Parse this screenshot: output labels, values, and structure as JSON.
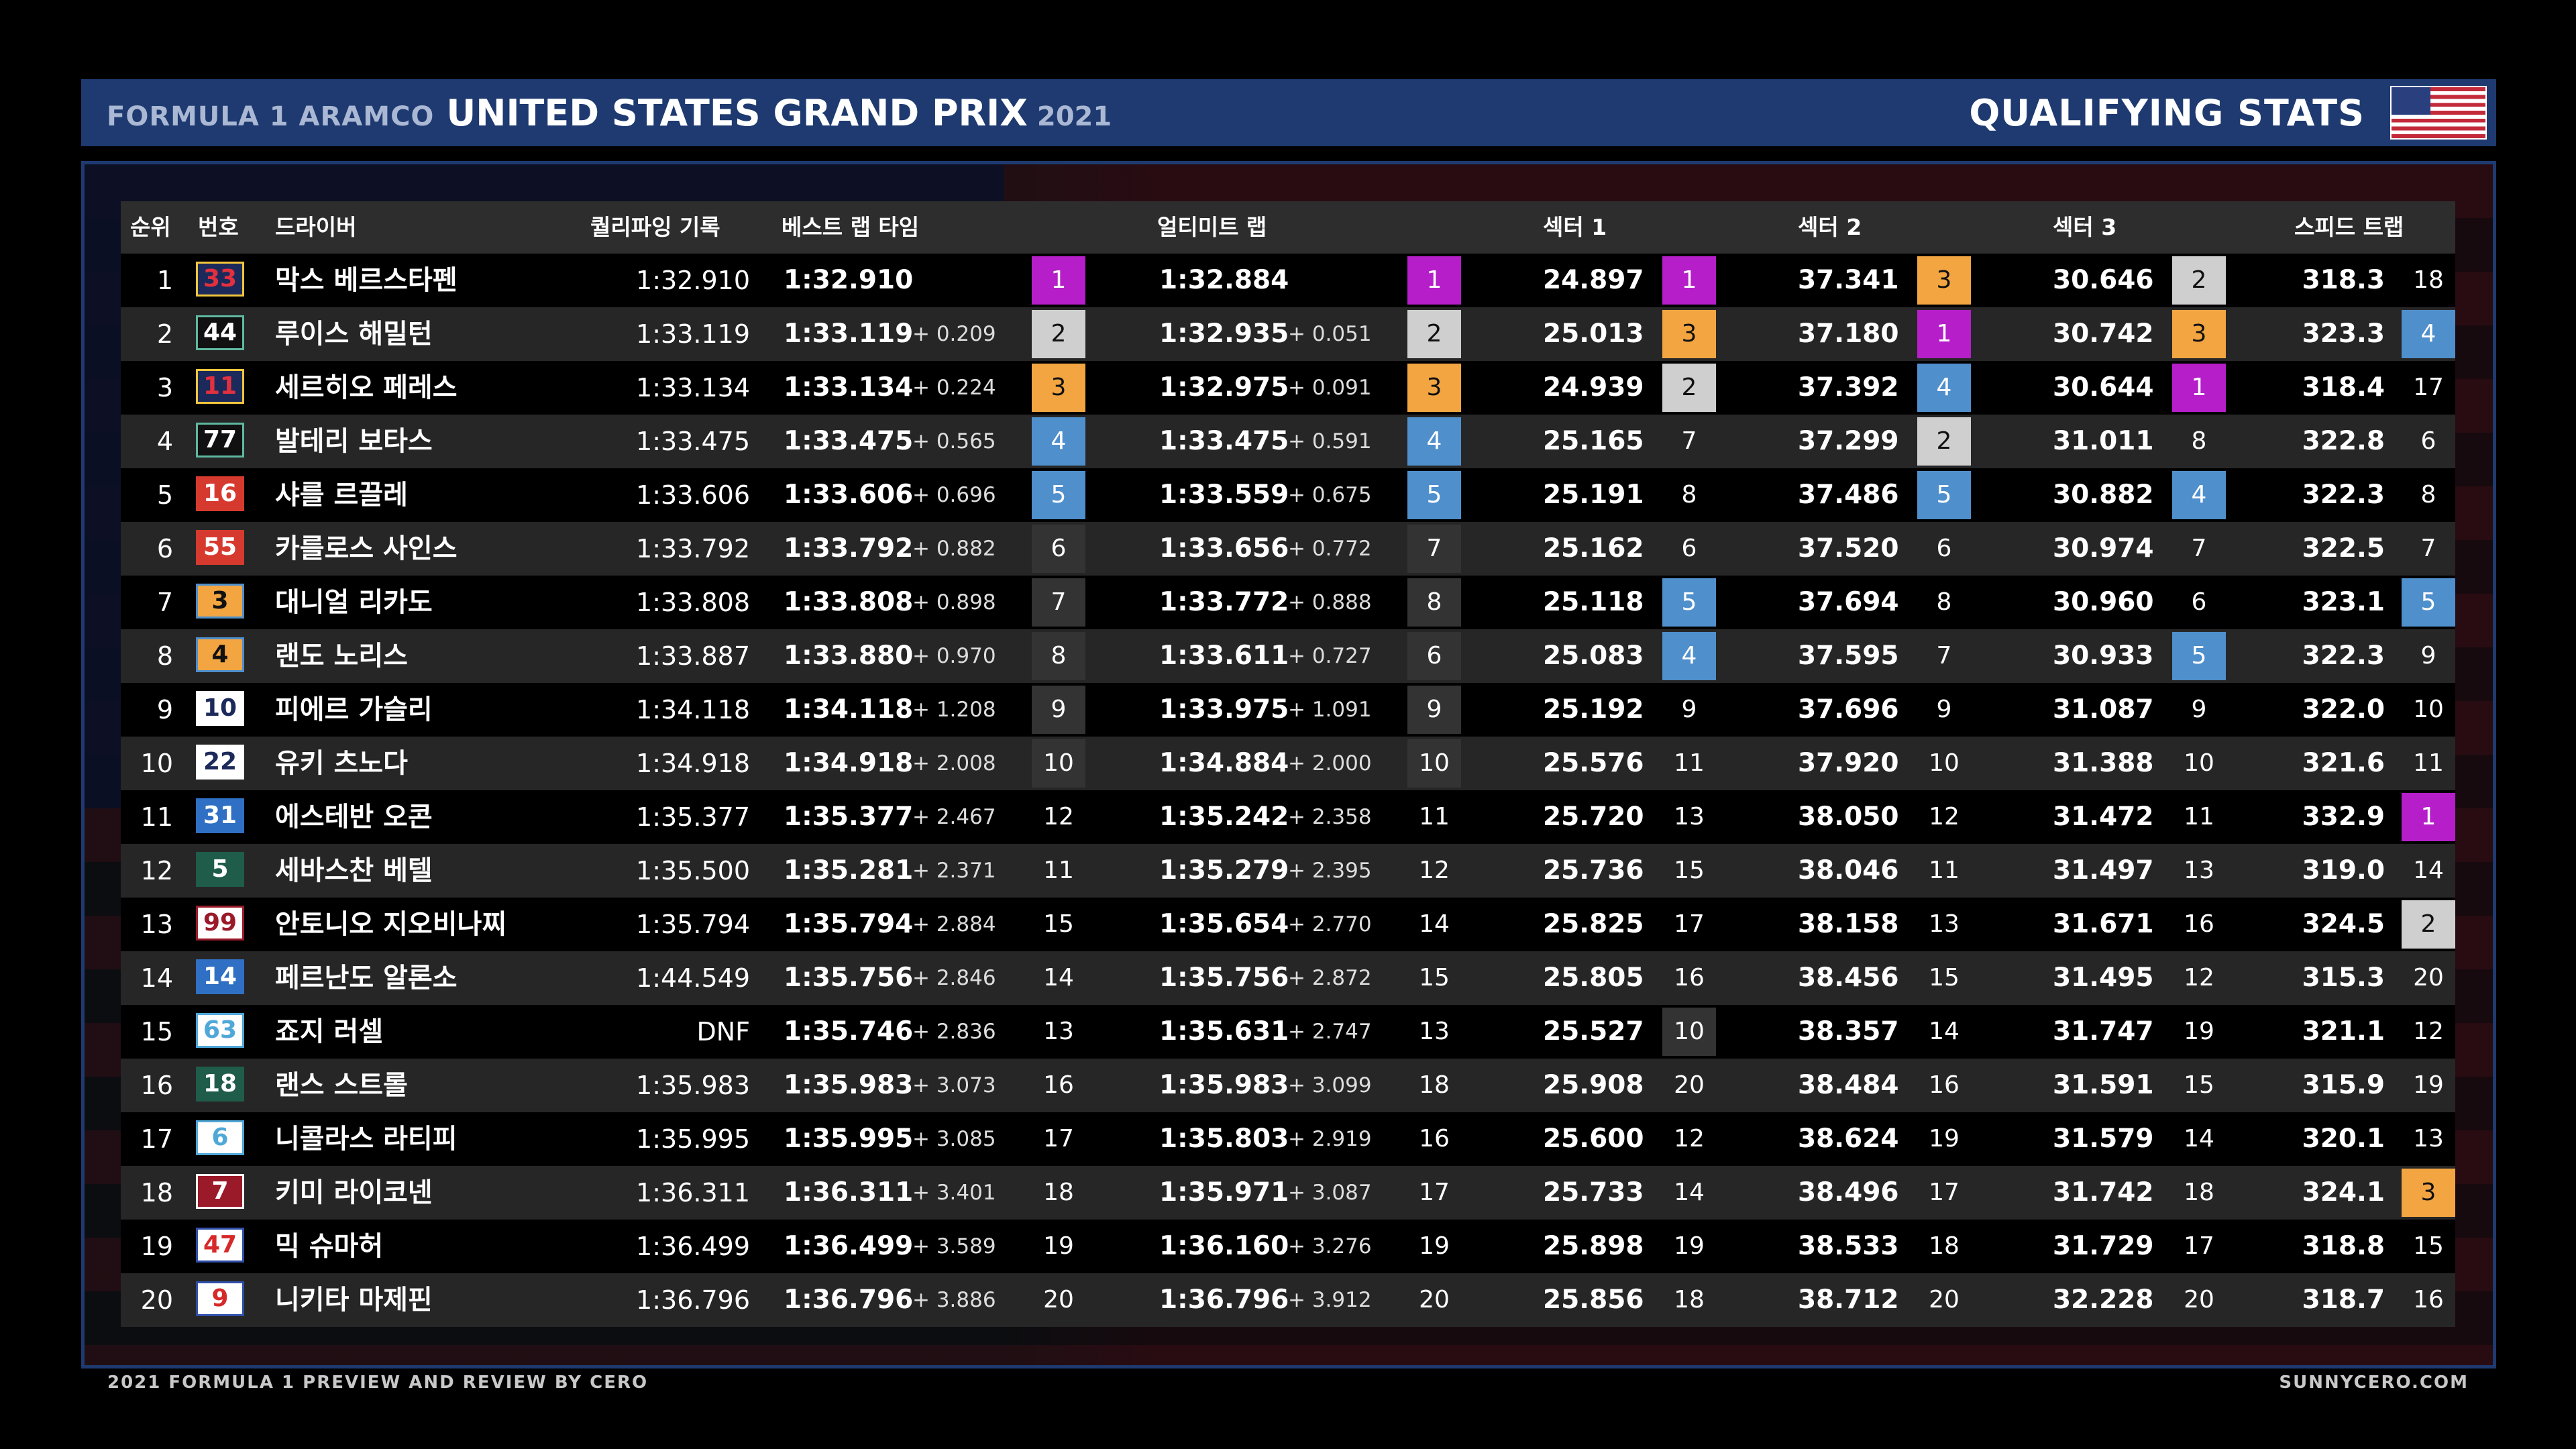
{
  "header": {
    "series": "FORMULA 1 ARAMCO",
    "event": "UNITED STATES GRAND PRIX",
    "year": "2021",
    "title": "QUALIFYING STATS",
    "flag_icon": "usa-flag-icon"
  },
  "columns": {
    "pos": "순위",
    "num": "번호",
    "driver": "드라이버",
    "qual": "퀄리파잉 기록",
    "best": "베스트 랩 타임",
    "ult": "얼티미트 랩",
    "s1": "섹터 1",
    "s2": "섹터 2",
    "s3": "섹터 3",
    "spd": "스피드 트랩"
  },
  "colors": {
    "purple": "#b51ec9",
    "silver": "#cfcfcf",
    "orange": "#f2a541",
    "blue": "#4f8fcc",
    "header_bg": "#1e3a70"
  },
  "rows": [
    {
      "pos": "1",
      "num": "33",
      "num_color": "#f2c53d",
      "num_text": "#e2303f",
      "num_bg": "#1b2a5a",
      "driver": "막스 베르스타펜",
      "qual": "1:32.910",
      "best": "1:32.910",
      "bgap": "",
      "bk": "1",
      "bc": "c1",
      "ult": "1:32.884",
      "ugap": "",
      "uk": "1",
      "uc": "c1",
      "s1": "24.897",
      "s1k": "1",
      "s1c": "c1",
      "s2": "37.341",
      "s2k": "3",
      "s2c": "c3",
      "s3": "30.646",
      "s3k": "2",
      "s3c": "c2",
      "spd": "318.3",
      "spk": "18",
      "spc": "plain"
    },
    {
      "pos": "2",
      "num": "44",
      "num_color": "#5fb8a0",
      "num_text": "#fff",
      "num_bg": "#111",
      "driver": "루이스 해밀턴",
      "qual": "1:33.119",
      "best": "1:33.119",
      "bgap": "+ 0.209",
      "bk": "2",
      "bc": "c2",
      "ult": "1:32.935",
      "ugap": "+ 0.051",
      "uk": "2",
      "uc": "c2",
      "s1": "25.013",
      "s1k": "3",
      "s1c": "c3",
      "s2": "37.180",
      "s2k": "1",
      "s2c": "c1",
      "s3": "30.742",
      "s3k": "3",
      "s3c": "c3",
      "spd": "323.3",
      "spk": "4",
      "spc": "cb"
    },
    {
      "pos": "3",
      "num": "11",
      "num_color": "#f2c53d",
      "num_text": "#e2303f",
      "num_bg": "#1b2a5a",
      "driver": "세르히오 페레스",
      "qual": "1:33.134",
      "best": "1:33.134",
      "bgap": "+ 0.224",
      "bk": "3",
      "bc": "c3",
      "ult": "1:32.975",
      "ugap": "+ 0.091",
      "uk": "3",
      "uc": "c3",
      "s1": "24.939",
      "s1k": "2",
      "s1c": "c2",
      "s2": "37.392",
      "s2k": "4",
      "s2c": "cb",
      "s3": "30.644",
      "s3k": "1",
      "s3c": "c1",
      "spd": "318.4",
      "spk": "17",
      "spc": "plain"
    },
    {
      "pos": "4",
      "num": "77",
      "num_color": "#5fb8a0",
      "num_text": "#fff",
      "num_bg": "#111",
      "driver": "발테리 보타스",
      "qual": "1:33.475",
      "best": "1:33.475",
      "bgap": "+ 0.565",
      "bk": "4",
      "bc": "cb",
      "ult": "1:33.475",
      "ugap": "+ 0.591",
      "uk": "4",
      "uc": "cb",
      "s1": "25.165",
      "s1k": "7",
      "s1c": "plain",
      "s2": "37.299",
      "s2k": "2",
      "s2c": "c2",
      "s3": "31.011",
      "s3k": "8",
      "s3c": "plain",
      "spd": "322.8",
      "spk": "6",
      "spc": "plain"
    },
    {
      "pos": "5",
      "num": "16",
      "num_color": "#d63a2f",
      "num_text": "#fff",
      "num_bg": "#d63a2f",
      "driver": "샤를 르끌레",
      "qual": "1:33.606",
      "best": "1:33.606",
      "bgap": "+ 0.696",
      "bk": "5",
      "bc": "cb",
      "ult": "1:33.559",
      "ugap": "+ 0.675",
      "uk": "5",
      "uc": "cb",
      "s1": "25.191",
      "s1k": "8",
      "s1c": "plain",
      "s2": "37.486",
      "s2k": "5",
      "s2c": "cb",
      "s3": "30.882",
      "s3k": "4",
      "s3c": "cb",
      "spd": "322.3",
      "spk": "8",
      "spc": "plain"
    },
    {
      "pos": "6",
      "num": "55",
      "num_color": "#d63a2f",
      "num_text": "#fff",
      "num_bg": "#d63a2f",
      "driver": "카를로스 사인스",
      "qual": "1:33.792",
      "best": "1:33.792",
      "bgap": "+ 0.882",
      "bk": "6",
      "bc": "dim",
      "ult": "1:33.656",
      "ugap": "+ 0.772",
      "uk": "7",
      "uc": "dim",
      "s1": "25.162",
      "s1k": "6",
      "s1c": "plain",
      "s2": "37.520",
      "s2k": "6",
      "s2c": "plain",
      "s3": "30.974",
      "s3k": "7",
      "s3c": "plain",
      "spd": "322.5",
      "spk": "7",
      "spc": "plain"
    },
    {
      "pos": "7",
      "num": "3",
      "num_color": "#4f8fcc",
      "num_text": "#111",
      "num_bg": "#f2a541",
      "driver": "대니얼 리카도",
      "qual": "1:33.808",
      "best": "1:33.808",
      "bgap": "+ 0.898",
      "bk": "7",
      "bc": "dim",
      "ult": "1:33.772",
      "ugap": "+ 0.888",
      "uk": "8",
      "uc": "dim",
      "s1": "25.118",
      "s1k": "5",
      "s1c": "cb",
      "s2": "37.694",
      "s2k": "8",
      "s2c": "plain",
      "s3": "30.960",
      "s3k": "6",
      "s3c": "plain",
      "spd": "323.1",
      "spk": "5",
      "spc": "cb"
    },
    {
      "pos": "8",
      "num": "4",
      "num_color": "#4f8fcc",
      "num_text": "#111",
      "num_bg": "#f2a541",
      "driver": "랜도 노리스",
      "qual": "1:33.887",
      "best": "1:33.880",
      "bgap": "+ 0.970",
      "bk": "8",
      "bc": "dim",
      "ult": "1:33.611",
      "ugap": "+ 0.727",
      "uk": "6",
      "uc": "dim",
      "s1": "25.083",
      "s1k": "4",
      "s1c": "cb",
      "s2": "37.595",
      "s2k": "7",
      "s2c": "plain",
      "s3": "30.933",
      "s3k": "5",
      "s3c": "cb",
      "spd": "322.3",
      "spk": "9",
      "spc": "plain"
    },
    {
      "pos": "9",
      "num": "10",
      "num_color": "#fff",
      "num_text": "#1b2a5a",
      "num_bg": "#fff",
      "driver": "피에르 가슬리",
      "qual": "1:34.118",
      "best": "1:34.118",
      "bgap": "+ 1.208",
      "bk": "9",
      "bc": "dim",
      "ult": "1:33.975",
      "ugap": "+ 1.091",
      "uk": "9",
      "uc": "dim",
      "s1": "25.192",
      "s1k": "9",
      "s1c": "plain",
      "s2": "37.696",
      "s2k": "9",
      "s2c": "plain",
      "s3": "31.087",
      "s3k": "9",
      "s3c": "plain",
      "spd": "322.0",
      "spk": "10",
      "spc": "plain"
    },
    {
      "pos": "10",
      "num": "22",
      "num_color": "#fff",
      "num_text": "#1b2a5a",
      "num_bg": "#fff",
      "driver": "유키 츠노다",
      "qual": "1:34.918",
      "best": "1:34.918",
      "bgap": "+ 2.008",
      "bk": "10",
      "bc": "dim",
      "ult": "1:34.884",
      "ugap": "+ 2.000",
      "uk": "10",
      "uc": "dim",
      "s1": "25.576",
      "s1k": "11",
      "s1c": "plain",
      "s2": "37.920",
      "s2k": "10",
      "s2c": "plain",
      "s3": "31.388",
      "s3k": "10",
      "s3c": "plain",
      "spd": "321.6",
      "spk": "11",
      "spc": "plain"
    },
    {
      "pos": "11",
      "num": "31",
      "num_color": "#2f6fc4",
      "num_text": "#fff",
      "num_bg": "#2f6fc4",
      "driver": "에스테반 오콘",
      "qual": "1:35.377",
      "best": "1:35.377",
      "bgap": "+ 2.467",
      "bk": "12",
      "bc": "plain",
      "ult": "1:35.242",
      "ugap": "+ 2.358",
      "uk": "11",
      "uc": "plain",
      "s1": "25.720",
      "s1k": "13",
      "s1c": "plain",
      "s2": "38.050",
      "s2k": "12",
      "s2c": "plain",
      "s3": "31.472",
      "s3k": "11",
      "s3c": "plain",
      "spd": "332.9",
      "spk": "1",
      "spc": "c1"
    },
    {
      "pos": "12",
      "num": "5",
      "num_color": "#1f5c4a",
      "num_text": "#fff",
      "num_bg": "#1f5c4a",
      "driver": "세바스찬 베텔",
      "qual": "1:35.500",
      "best": "1:35.281",
      "bgap": "+ 2.371",
      "bk": "11",
      "bc": "plain",
      "ult": "1:35.279",
      "ugap": "+ 2.395",
      "uk": "12",
      "uc": "plain",
      "s1": "25.736",
      "s1k": "15",
      "s1c": "plain",
      "s2": "38.046",
      "s2k": "11",
      "s2c": "plain",
      "s3": "31.497",
      "s3k": "13",
      "s3c": "plain",
      "spd": "319.0",
      "spk": "14",
      "spc": "plain"
    },
    {
      "pos": "13",
      "num": "99",
      "num_color": "#9b1a2a",
      "num_text": "#9b1a2a",
      "num_bg": "#fff",
      "driver": "안토니오 지오비나찌",
      "qual": "1:35.794",
      "best": "1:35.794",
      "bgap": "+ 2.884",
      "bk": "15",
      "bc": "plain",
      "ult": "1:35.654",
      "ugap": "+ 2.770",
      "uk": "14",
      "uc": "plain",
      "s1": "25.825",
      "s1k": "17",
      "s1c": "plain",
      "s2": "38.158",
      "s2k": "13",
      "s2c": "plain",
      "s3": "31.671",
      "s3k": "16",
      "s3c": "plain",
      "spd": "324.5",
      "spk": "2",
      "spc": "c2"
    },
    {
      "pos": "14",
      "num": "14",
      "num_color": "#2f6fc4",
      "num_text": "#fff",
      "num_bg": "#2f6fc4",
      "driver": "페르난도 알론소",
      "qual": "1:44.549",
      "best": "1:35.756",
      "bgap": "+ 2.846",
      "bk": "14",
      "bc": "plain",
      "ult": "1:35.756",
      "ugap": "+ 2.872",
      "uk": "15",
      "uc": "plain",
      "s1": "25.805",
      "s1k": "16",
      "s1c": "plain",
      "s2": "38.456",
      "s2k": "15",
      "s2c": "plain",
      "s3": "31.495",
      "s3k": "12",
      "s3c": "plain",
      "spd": "315.3",
      "spk": "20",
      "spc": "plain"
    },
    {
      "pos": "15",
      "num": "63",
      "num_color": "#4fa8d8",
      "num_text": "#4fa8d8",
      "num_bg": "#fff",
      "driver": "죠지 러셀",
      "qual": "DNF",
      "best": "1:35.746",
      "bgap": "+ 2.836",
      "bk": "13",
      "bc": "plain",
      "ult": "1:35.631",
      "ugap": "+ 2.747",
      "uk": "13",
      "uc": "plain",
      "s1": "25.527",
      "s1k": "10",
      "s1c": "dim",
      "s2": "38.357",
      "s2k": "14",
      "s2c": "plain",
      "s3": "31.747",
      "s3k": "19",
      "s3c": "plain",
      "spd": "321.1",
      "spk": "12",
      "spc": "plain"
    },
    {
      "pos": "16",
      "num": "18",
      "num_color": "#1f5c4a",
      "num_text": "#fff",
      "num_bg": "#1f5c4a",
      "driver": "랜스 스트롤",
      "qual": "1:35.983",
      "best": "1:35.983",
      "bgap": "+ 3.073",
      "bk": "16",
      "bc": "plain",
      "ult": "1:35.983",
      "ugap": "+ 3.099",
      "uk": "18",
      "uc": "plain",
      "s1": "25.908",
      "s1k": "20",
      "s1c": "plain",
      "s2": "38.484",
      "s2k": "16",
      "s2c": "plain",
      "s3": "31.591",
      "s3k": "15",
      "s3c": "plain",
      "spd": "315.9",
      "spk": "19",
      "spc": "plain"
    },
    {
      "pos": "17",
      "num": "6",
      "num_color": "#4fa8d8",
      "num_text": "#4fa8d8",
      "num_bg": "#fff",
      "driver": "니콜라스 라티피",
      "qual": "1:35.995",
      "best": "1:35.995",
      "bgap": "+ 3.085",
      "bk": "17",
      "bc": "plain",
      "ult": "1:35.803",
      "ugap": "+ 2.919",
      "uk": "16",
      "uc": "plain",
      "s1": "25.600",
      "s1k": "12",
      "s1c": "plain",
      "s2": "38.624",
      "s2k": "19",
      "s2c": "plain",
      "s3": "31.579",
      "s3k": "14",
      "s3c": "plain",
      "spd": "320.1",
      "spk": "13",
      "spc": "plain"
    },
    {
      "pos": "18",
      "num": "7",
      "num_color": "#fff",
      "num_text": "#fff",
      "num_bg": "#9b1a2a",
      "driver": "키미 라이코넨",
      "qual": "1:36.311",
      "best": "1:36.311",
      "bgap": "+ 3.401",
      "bk": "18",
      "bc": "plain",
      "ult": "1:35.971",
      "ugap": "+ 3.087",
      "uk": "17",
      "uc": "plain",
      "s1": "25.733",
      "s1k": "14",
      "s1c": "plain",
      "s2": "38.496",
      "s2k": "17",
      "s2c": "plain",
      "s3": "31.742",
      "s3k": "18",
      "s3c": "plain",
      "spd": "324.1",
      "spk": "3",
      "spc": "c3"
    },
    {
      "pos": "19",
      "num": "47",
      "num_color": "#2f4fa8",
      "num_text": "#d62a2a",
      "num_bg": "#fff",
      "driver": "믹 슈마허",
      "qual": "1:36.499",
      "best": "1:36.499",
      "bgap": "+ 3.589",
      "bk": "19",
      "bc": "plain",
      "ult": "1:36.160",
      "ugap": "+ 3.276",
      "uk": "19",
      "uc": "plain",
      "s1": "25.898",
      "s1k": "19",
      "s1c": "plain",
      "s2": "38.533",
      "s2k": "18",
      "s2c": "plain",
      "s3": "31.729",
      "s3k": "17",
      "s3c": "plain",
      "spd": "318.8",
      "spk": "15",
      "spc": "plain"
    },
    {
      "pos": "20",
      "num": "9",
      "num_color": "#2f4fa8",
      "num_text": "#d62a2a",
      "num_bg": "#fff",
      "driver": "니키타 마제핀",
      "qual": "1:36.796",
      "best": "1:36.796",
      "bgap": "+ 3.886",
      "bk": "20",
      "bc": "plain",
      "ult": "1:36.796",
      "ugap": "+ 3.912",
      "uk": "20",
      "uc": "plain",
      "s1": "25.856",
      "s1k": "18",
      "s1c": "plain",
      "s2": "38.712",
      "s2k": "20",
      "s2c": "plain",
      "s3": "32.228",
      "s3k": "20",
      "s3c": "plain",
      "spd": "318.7",
      "spk": "16",
      "spc": "plain"
    }
  ],
  "footer": {
    "left": "2021 FORMULA 1 PREVIEW AND REVIEW BY CERO",
    "right": "SUNNYCERO.COM"
  }
}
